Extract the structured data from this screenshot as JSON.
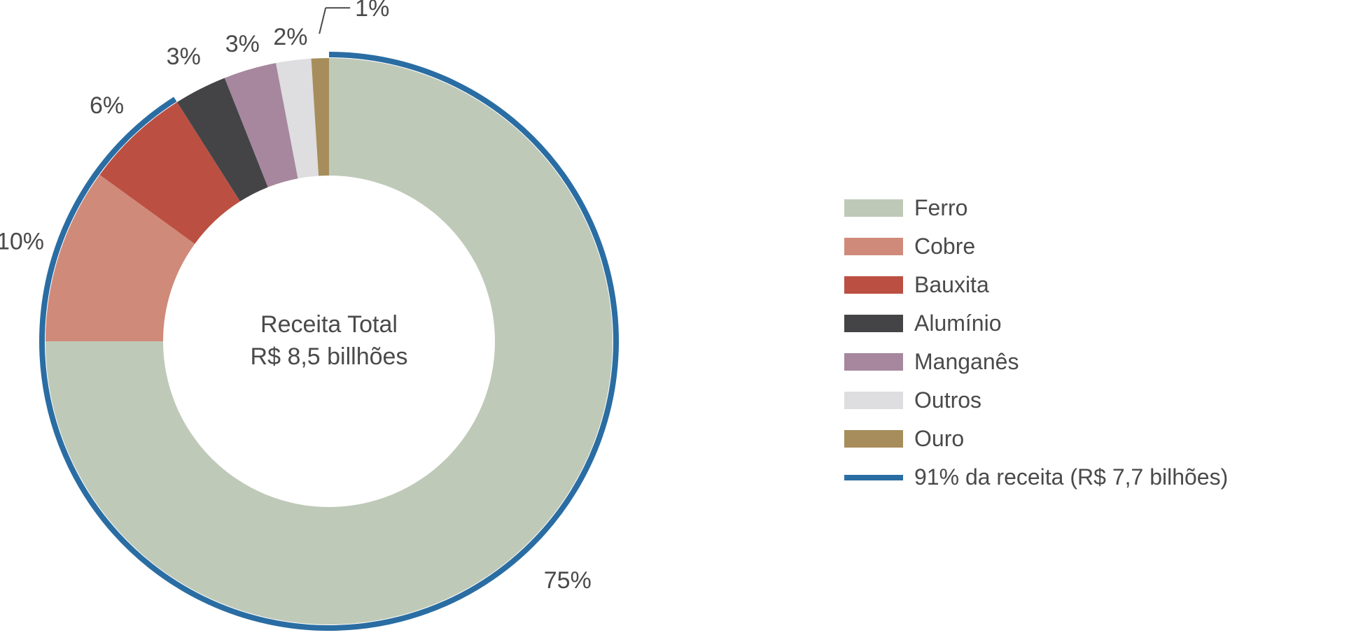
{
  "chart_data": {
    "type": "pie",
    "donut": true,
    "center_text": [
      "Receita Total",
      "R$ 8,5 billhões"
    ],
    "slices": [
      {
        "name": "Ferro",
        "value": 75,
        "label": "75%",
        "color": "#bfc9b8"
      },
      {
        "name": "Cobre",
        "value": 10,
        "label": "10%",
        "color": "#d08a79"
      },
      {
        "name": "Bauxita",
        "value": 6,
        "label": "6%",
        "color": "#bb5042"
      },
      {
        "name": "Alumínio",
        "value": 3,
        "label": "3%",
        "color": "#444446"
      },
      {
        "name": "Manganês",
        "value": 3,
        "label": "3%",
        "color": "#a6879e"
      },
      {
        "name": "Outros",
        "value": 2,
        "label": "2%",
        "color": "#dedddf"
      },
      {
        "name": "Ouro",
        "value": 1,
        "label": "1%",
        "color": "#a68d5b"
      }
    ],
    "highlight": {
      "label": "91% da receita (R$ 7,7 bilhões)",
      "share": 91,
      "color": "#2a6da3"
    },
    "legend_position": "right"
  }
}
